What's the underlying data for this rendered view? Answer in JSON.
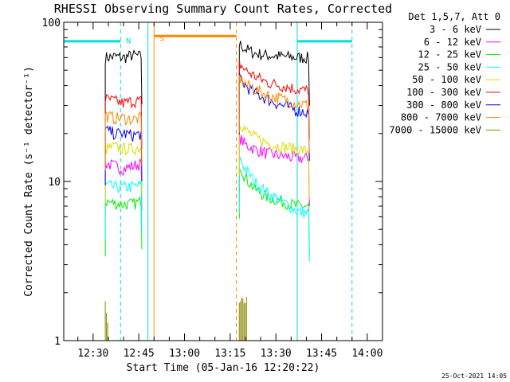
{
  "chart_data": {
    "type": "line",
    "title": "RHESSI Observing Summary Count Rates, Corrected",
    "xlabel": "Start Time (05-Jan-16 12:20:22)",
    "ylabel": "Corrected Count Rate (s⁻¹ detector⁻¹)",
    "yscale": "log",
    "xlim": [
      "12:20:22",
      "14:05:00"
    ],
    "ylim": [
      1,
      100
    ],
    "x_ticks": [
      "12:30",
      "12:45",
      "13:00",
      "13:15",
      "13:30",
      "13:45",
      "14:00"
    ],
    "y_ticks": [
      "1",
      "10",
      "100"
    ],
    "legend_title": "Det 1,5,7, Att 0",
    "legend_position": "right",
    "timestamp": "25-Oct-2021 14:05",
    "series": [
      {
        "name": "3 - 6 keV",
        "color": "#000000",
        "segments": [
          {
            "x": [
              "12:34",
              "12:37",
              "12:40",
              "12:43",
              "12:46"
            ],
            "values": [
              60,
              61,
              60,
              62,
              61
            ]
          },
          {
            "x": [
              "13:18",
              "13:20",
              "13:23",
              "13:27",
              "13:32",
              "13:37",
              "13:41"
            ],
            "values": [
              73,
              68,
              64,
              62,
              61,
              60,
              60
            ]
          }
        ]
      },
      {
        "name": "6 - 12 keV",
        "color": "#ff00ff",
        "segments": [
          {
            "x": [
              "12:34",
              "12:37",
              "12:40",
              "12:43",
              "12:46"
            ],
            "values": [
              13,
              12.5,
              12,
              12.5,
              13
            ]
          },
          {
            "x": [
              "13:18",
              "13:20",
              "13:23",
              "13:27",
              "13:32",
              "13:37",
              "13:41"
            ],
            "values": [
              19,
              17,
              16,
              15,
              14.5,
              14,
              14
            ]
          }
        ]
      },
      {
        "name": "12 - 25 keV",
        "color": "#00ee00",
        "segments": [
          {
            "x": [
              "12:34",
              "12:37",
              "12:40",
              "12:43",
              "12:46"
            ],
            "values": [
              7.5,
              7.3,
              7.2,
              7.2,
              7.5
            ]
          },
          {
            "x": [
              "13:18",
              "13:20",
              "13:23",
              "13:27",
              "13:32",
              "13:37",
              "13:41"
            ],
            "values": [
              13,
              10.5,
              9,
              8,
              7.5,
              7,
              7
            ]
          }
        ]
      },
      {
        "name": "25 - 50 keV",
        "color": "#00ffff",
        "segments": [
          {
            "x": [
              "12:34",
              "12:37",
              "12:40",
              "12:43",
              "12:46"
            ],
            "values": [
              9.5,
              9.2,
              9.2,
              9.3,
              9.5
            ]
          },
          {
            "x": [
              "13:18",
              "13:20",
              "13:23",
              "13:27",
              "13:32",
              "13:37",
              "13:41"
            ],
            "values": [
              14,
              12,
              10,
              8.5,
              7.5,
              6.5,
              6.3
            ]
          }
        ]
      },
      {
        "name": "50 - 100 keV",
        "color": "#dddd00",
        "segments": [
          {
            "x": [
              "12:34",
              "12:37",
              "12:40",
              "12:43",
              "12:46"
            ],
            "values": [
              16,
              16.5,
              16,
              16,
              16.5
            ]
          },
          {
            "x": [
              "13:18",
              "13:20",
              "13:23",
              "13:27",
              "13:32",
              "13:37",
              "13:41"
            ],
            "values": [
              24,
              21,
              19,
              17.5,
              16.5,
              16,
              15.5
            ]
          }
        ]
      },
      {
        "name": "100 - 300 keV",
        "color": "#ff0000",
        "segments": [
          {
            "x": [
              "12:34",
              "12:37",
              "12:40",
              "12:43",
              "12:46"
            ],
            "values": [
              33,
              32,
              31,
              32,
              32
            ]
          },
          {
            "x": [
              "13:18",
              "13:20",
              "13:23",
              "13:27",
              "13:32",
              "13:37",
              "13:41"
            ],
            "values": [
              55,
              50,
              46,
              42,
              40,
              38,
              37
            ]
          }
        ]
      },
      {
        "name": "300 - 800 keV",
        "color": "#0000ff",
        "segments": [
          {
            "x": [
              "12:34",
              "12:37",
              "12:40",
              "12:43",
              "12:46"
            ],
            "values": [
              21,
              20,
              20,
              19.5,
              20
            ]
          },
          {
            "x": [
              "13:18",
              "13:20",
              "13:23",
              "13:27",
              "13:32",
              "13:37",
              "13:41"
            ],
            "values": [
              44,
              40,
              36,
              33,
              30,
              28,
              27
            ]
          }
        ]
      },
      {
        "name": "800 - 7000 keV",
        "color": "#ff8800",
        "segments": [
          {
            "x": [
              "12:34",
              "12:37",
              "12:40",
              "12:43",
              "12:46"
            ],
            "values": [
              26,
              25,
              25,
              24.5,
              25
            ]
          },
          {
            "x": [
              "13:18",
              "13:20",
              "13:23",
              "13:27",
              "13:32",
              "13:37",
              "13:41"
            ],
            "values": [
              45,
              41,
              38,
              35,
              33,
              31,
              30
            ]
          }
        ]
      },
      {
        "name": "7000 - 15000 keV",
        "color": "#888800",
        "segments": [
          {
            "x": [
              "12:34",
              "12:34.8"
            ],
            "values": [
              1.8,
              1.3
            ]
          },
          {
            "x": [
              "13:18",
              "13:20.5"
            ],
            "values": [
              1.8,
              1.8
            ]
          }
        ]
      }
    ],
    "annotations": [
      {
        "label": "N",
        "color": "#00dddd",
        "x": "12:39",
        "y": 77
      },
      {
        "label": "S",
        "color": "#ff8800",
        "x": "12:50",
        "y": 80
      }
    ],
    "flag_bars": [
      {
        "name": "night",
        "color": "#00dddd",
        "x0": "12:20:22",
        "x1": "12:39",
        "y": 76
      },
      {
        "name": "night",
        "color": "#00dddd",
        "x0": "13:37",
        "x1": "13:55",
        "y": 76
      },
      {
        "name": "saa",
        "color": "#ff8800",
        "x0": "12:50",
        "x1": "13:17",
        "y": 82
      }
    ],
    "markers": [
      {
        "x": "12:39",
        "color": "#00dddd",
        "style": "dashed"
      },
      {
        "x": "12:48",
        "color": "#00dddd",
        "style": "solid"
      },
      {
        "x": "12:50",
        "color": "#ff8800",
        "style": "solid"
      },
      {
        "x": "13:17",
        "color": "#ff8800",
        "style": "dashed"
      },
      {
        "x": "13:37",
        "color": "#00dddd",
        "style": "solid"
      },
      {
        "x": "13:55",
        "color": "#00dddd",
        "style": "dashed"
      }
    ]
  }
}
